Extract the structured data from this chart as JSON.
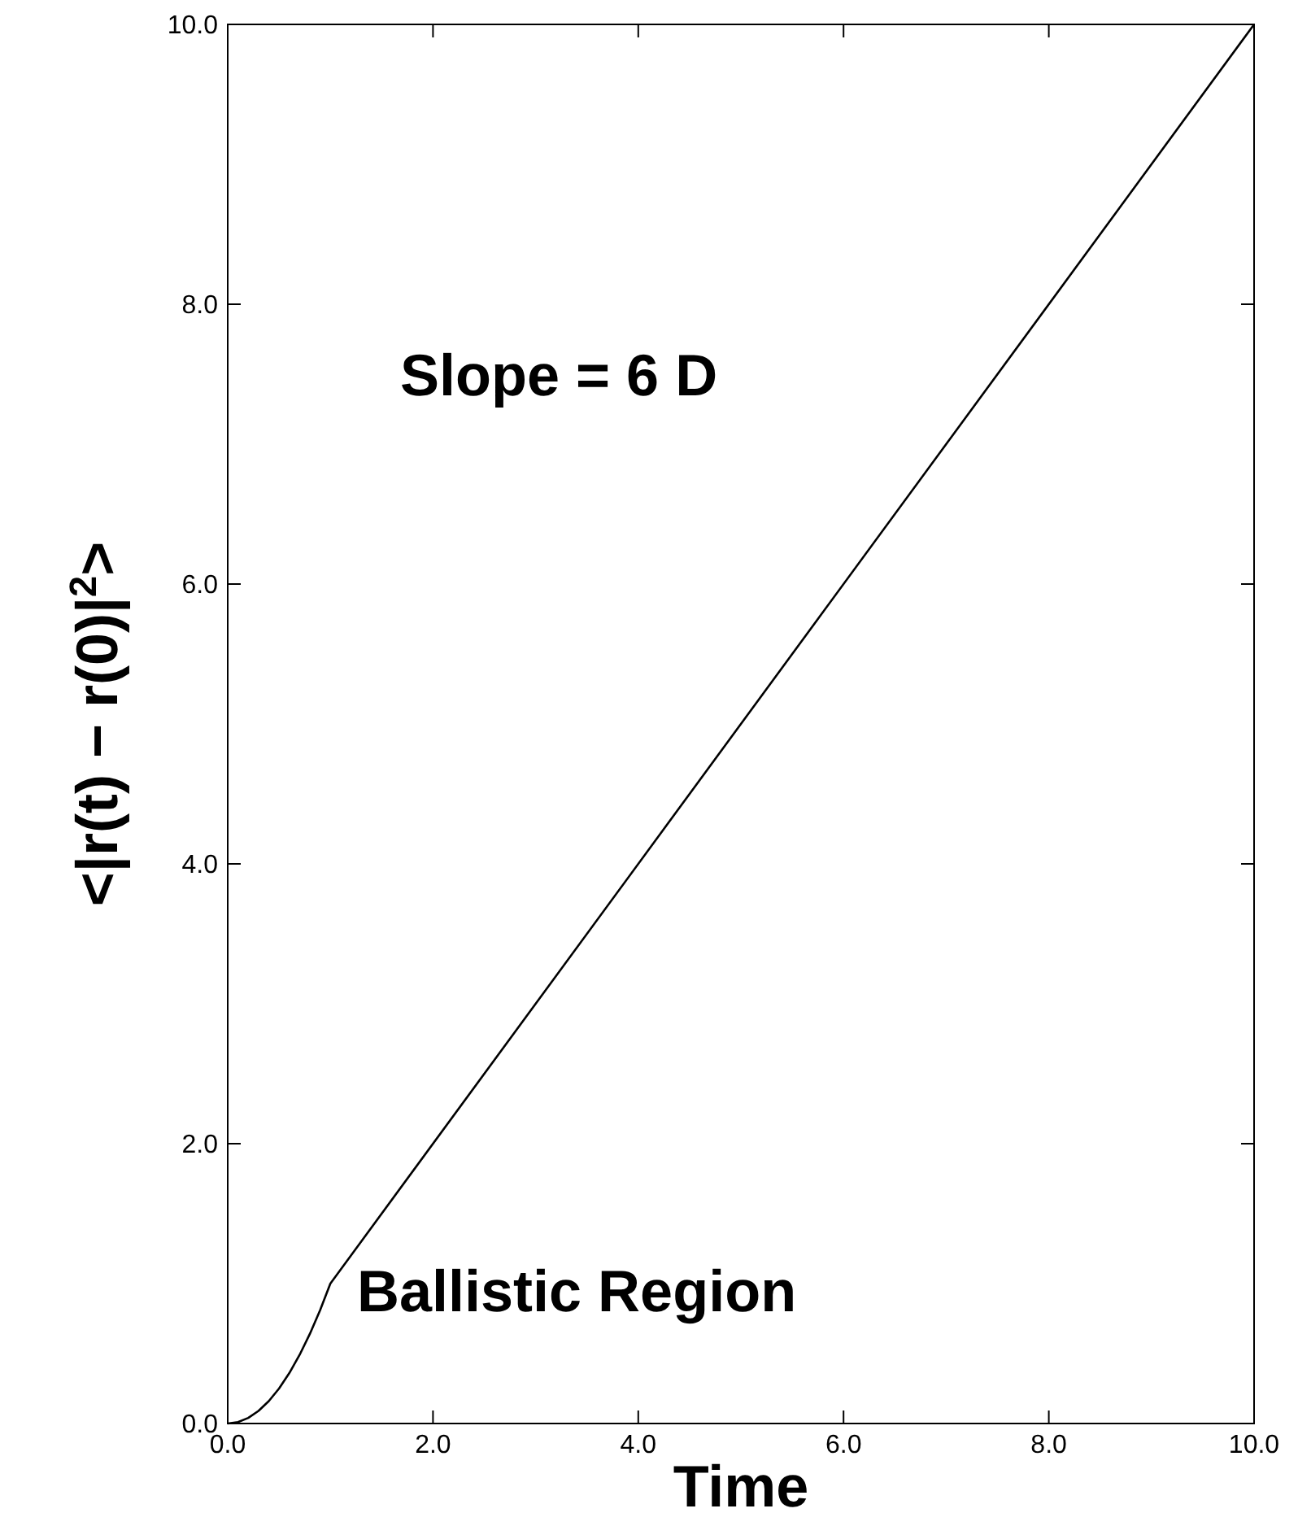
{
  "chart_data": {
    "type": "line",
    "xlabel": "Time",
    "ylabel": "<|r(t) − r(0)|$^{2}$>",
    "annotations": [
      "Slope = 6 D",
      "Ballistic Region"
    ],
    "series": [
      {
        "color": "#000000",
        "x": [
          0,
          0.1,
          0.2,
          0.3,
          0.4,
          0.5,
          0.6,
          0.7,
          0.8,
          0.9,
          1.0,
          10
        ],
        "values": [
          0,
          0.01,
          0.04,
          0.09,
          0.16,
          0.25,
          0.36,
          0.49,
          0.64,
          0.81,
          1.0,
          10
        ]
      }
    ],
    "xlim": [
      0,
      10
    ],
    "ylim": [
      0,
      10
    ],
    "xticks": [
      {
        "value": 0,
        "label": "0.0"
      },
      {
        "value": 2,
        "label": "2.0"
      },
      {
        "value": 4,
        "label": "4.0"
      },
      {
        "value": 6,
        "label": "6.0"
      },
      {
        "value": 8,
        "label": "8.0"
      },
      {
        "value": 10,
        "label": "10.0"
      }
    ],
    "yticks": [
      {
        "value": 0,
        "label": "0.0"
      },
      {
        "value": 2,
        "label": "2.0"
      },
      {
        "value": 4,
        "label": "4.0"
      },
      {
        "value": 6,
        "label": "6.0"
      },
      {
        "value": 8,
        "label": "8.0"
      },
      {
        "value": 10,
        "label": "10.0"
      }
    ],
    "grid": false,
    "marker": "none",
    "line_style": "solid"
  }
}
